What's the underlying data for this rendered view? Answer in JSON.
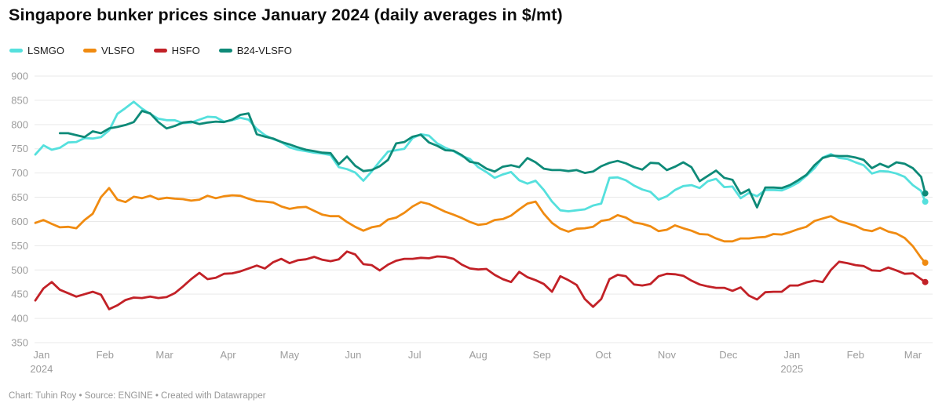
{
  "title": "Singapore bunker prices since January 2024 (daily averages in $/mt)",
  "footer": "Chart: Tuhin Roy • Source: ENGINE • Created with Datawrapper",
  "colors": {
    "lsmgo": "#55e0dd",
    "vlsfo": "#f08b11",
    "hsfo": "#c22127",
    "b24vlsfo": "#0e8a78",
    "grid": "#e9e9e9",
    "axis_text": "#9c9c9c"
  },
  "legend": [
    {
      "label": "LSMGO",
      "color": "#55e0dd"
    },
    {
      "label": "VLSFO",
      "color": "#f08b11"
    },
    {
      "label": "HSFO",
      "color": "#c22127"
    },
    {
      "label": "B24-VLSFO",
      "color": "#0e8a78"
    }
  ],
  "chart_data": {
    "type": "line",
    "title": "Singapore bunker prices since January 2024 (daily averages in $/mt)",
    "ylabel": "$/mt",
    "ylim": [
      350,
      900
    ],
    "grid": true,
    "legend_position": "top-left",
    "x_unit": "days_since_2024-01-01",
    "y_axis": {
      "ticks": [
        350,
        400,
        450,
        500,
        550,
        600,
        650,
        700,
        750,
        800,
        850,
        900
      ]
    },
    "x_axis": {
      "tick_days": [
        3,
        34,
        63,
        94,
        124,
        155,
        185,
        216,
        247,
        277,
        308,
        338,
        369,
        400,
        428
      ],
      "tick_labels": [
        "Jan",
        "Feb",
        "Mar",
        "Apr",
        "May",
        "Jun",
        "Jul",
        "Aug",
        "Sep",
        "Oct",
        "Nov",
        "Dec",
        "Jan",
        "Feb",
        "Mar"
      ],
      "year_labels": [
        {
          "tick_index": 0,
          "label": "2024"
        },
        {
          "tick_index": 12,
          "label": "2025"
        }
      ]
    },
    "sample_days": [
      0,
      4,
      8,
      12,
      16,
      20,
      24,
      28,
      32,
      36,
      40,
      44,
      48,
      52,
      56,
      60,
      64,
      68,
      72,
      76,
      80,
      84,
      88,
      92,
      96,
      100,
      104,
      108,
      112,
      116,
      120,
      124,
      128,
      132,
      136,
      140,
      144,
      148,
      152,
      156,
      160,
      164,
      168,
      172,
      176,
      180,
      184,
      188,
      192,
      196,
      200,
      204,
      208,
      212,
      216,
      220,
      224,
      228,
      232,
      236,
      240,
      244,
      248,
      252,
      256,
      260,
      264,
      268,
      272,
      276,
      280,
      284,
      288,
      292,
      296,
      300,
      304,
      308,
      312,
      316,
      320,
      324,
      328,
      332,
      336,
      340,
      344,
      348,
      352,
      356,
      360,
      364,
      368,
      372,
      376,
      380,
      384,
      388,
      392,
      396,
      400,
      404,
      408,
      412,
      416,
      420,
      424,
      428,
      432,
      434
    ],
    "series": [
      {
        "name": "LSMGO",
        "color": "#55e0dd",
        "values": [
          738,
          757,
          748,
          752,
          763,
          764,
          772,
          771,
          774,
          788,
          822,
          834,
          847,
          833,
          822,
          812,
          809,
          809,
          803,
          804,
          810,
          816,
          815,
          806,
          809,
          814,
          810,
          791,
          778,
          770,
          764,
          753,
          748,
          745,
          742,
          740,
          737,
          712,
          708,
          701,
          684,
          703,
          724,
          744,
          747,
          750,
          772,
          780,
          777,
          761,
          752,
          745,
          735,
          729,
          712,
          702,
          690,
          697,
          702,
          685,
          678,
          684,
          665,
          641,
          623,
          621,
          623,
          625,
          633,
          637,
          690,
          691,
          685,
          674,
          666,
          661,
          645,
          652,
          665,
          673,
          675,
          669,
          683,
          688,
          671,
          672,
          648,
          659,
          652,
          665,
          665,
          664,
          671,
          680,
          694,
          710,
          732,
          739,
          731,
          729,
          722,
          716,
          699,
          704,
          703,
          699,
          692,
          675,
          663,
          641
        ]
      },
      {
        "name": "VLSFO",
        "color": "#f08b11",
        "values": [
          597,
          603,
          595,
          588,
          589,
          586,
          603,
          616,
          650,
          669,
          645,
          640,
          651,
          648,
          653,
          646,
          649,
          647,
          646,
          643,
          645,
          653,
          648,
          652,
          654,
          653,
          647,
          642,
          641,
          639,
          631,
          626,
          629,
          630,
          622,
          614,
          611,
          611,
          599,
          589,
          581,
          588,
          591,
          604,
          608,
          618,
          631,
          640,
          636,
          628,
          620,
          614,
          607,
          599,
          593,
          595,
          603,
          605,
          612,
          625,
          637,
          641,
          616,
          597,
          585,
          579,
          585,
          586,
          589,
          601,
          604,
          613,
          608,
          598,
          595,
          590,
          580,
          583,
          592,
          586,
          581,
          574,
          573,
          565,
          559,
          559,
          565,
          565,
          567,
          568,
          574,
          573,
          578,
          584,
          589,
          601,
          606,
          611,
          601,
          596,
          591,
          583,
          580,
          587,
          579,
          575,
          566,
          549,
          525,
          515
        ]
      },
      {
        "name": "HSFO",
        "color": "#c22127",
        "values": [
          437,
          462,
          475,
          459,
          452,
          445,
          450,
          455,
          449,
          419,
          427,
          438,
          443,
          442,
          445,
          442,
          444,
          452,
          466,
          481,
          494,
          481,
          484,
          492,
          493,
          497,
          503,
          509,
          503,
          516,
          523,
          514,
          520,
          522,
          527,
          521,
          518,
          522,
          538,
          532,
          512,
          510,
          499,
          511,
          519,
          523,
          523,
          525,
          524,
          528,
          527,
          523,
          511,
          503,
          501,
          502,
          490,
          481,
          475,
          496,
          485,
          479,
          471,
          455,
          487,
          479,
          469,
          440,
          424,
          440,
          481,
          490,
          487,
          470,
          468,
          471,
          487,
          492,
          491,
          488,
          478,
          470,
          466,
          463,
          463,
          457,
          464,
          447,
          439,
          454,
          455,
          455,
          468,
          468,
          474,
          478,
          475,
          500,
          517,
          514,
          510,
          508,
          499,
          498,
          505,
          499,
          492,
          493,
          481,
          475
        ]
      },
      {
        "name": "B24-VLSFO",
        "color": "#0e8a78",
        "values": [
          null,
          null,
          null,
          782,
          782,
          778,
          774,
          786,
          782,
          792,
          795,
          799,
          805,
          828,
          823,
          805,
          792,
          797,
          804,
          806,
          801,
          804,
          806,
          805,
          810,
          820,
          823,
          780,
          775,
          771,
          764,
          759,
          753,
          748,
          745,
          742,
          741,
          718,
          734,
          715,
          704,
          706,
          714,
          727,
          761,
          764,
          775,
          779,
          763,
          756,
          747,
          746,
          737,
          723,
          720,
          709,
          703,
          713,
          716,
          712,
          731,
          722,
          709,
          706,
          706,
          704,
          706,
          700,
          703,
          714,
          721,
          725,
          720,
          712,
          707,
          721,
          720,
          706,
          713,
          722,
          712,
          683,
          694,
          705,
          690,
          686,
          657,
          666,
          629,
          670,
          670,
          669,
          675,
          685,
          696,
          716,
          731,
          736,
          735,
          735,
          732,
          727,
          710,
          719,
          712,
          722,
          719,
          710,
          692,
          658
        ]
      }
    ]
  }
}
